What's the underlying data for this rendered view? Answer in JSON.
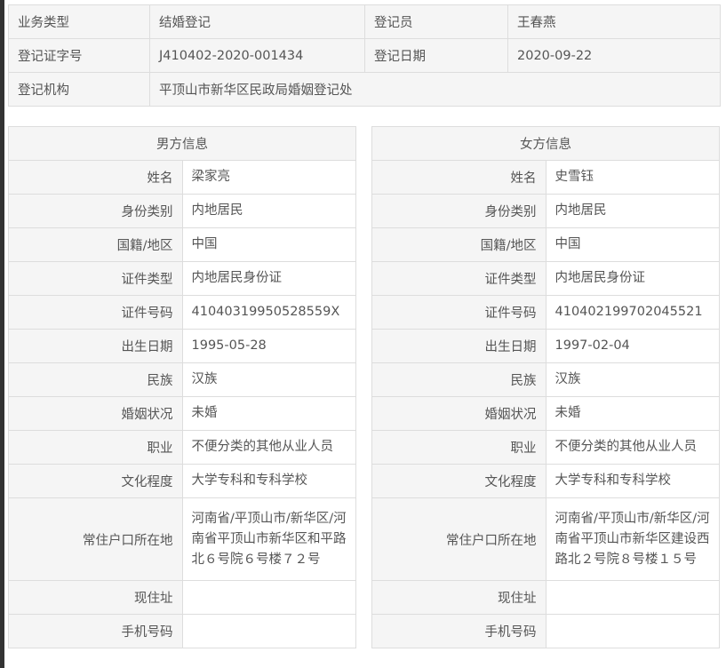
{
  "registration": {
    "business_type_label": "业务类型",
    "business_type": "结婚登记",
    "registrar_label": "登记员",
    "registrar": "王春燕",
    "cert_no_label": "登记证字号",
    "cert_no": "J410402-2020-001434",
    "date_label": "登记日期",
    "date": "2020-09-22",
    "office_label": "登记机构",
    "office": "平顶山市新华区民政局婚姻登记处"
  },
  "labels": [
    "姓名",
    "身份类别",
    "国籍/地区",
    "证件类型",
    "证件号码",
    "出生日期",
    "民族",
    "婚姻状况",
    "职业",
    "文化程度",
    "常住户口所在地",
    "现住址",
    "手机号码"
  ],
  "male": {
    "title": "男方信息",
    "values": [
      "梁家亮",
      "内地居民",
      "中国",
      "内地居民身份证",
      "41040319950528559X",
      "1995-05-28",
      "汉族",
      "未婚",
      "不便分类的其他从业人员",
      "大学专科和专科学校",
      "河南省/平顶山市/新华区/河南省平顶山市新华区和平路北６号院６号楼７２号",
      "",
      ""
    ]
  },
  "female": {
    "title": "女方信息",
    "values": [
      "史雪钰",
      "内地居民",
      "中国",
      "内地居民身份证",
      "410402199702045521",
      "1997-02-04",
      "汉族",
      "未婚",
      "不便分类的其他从业人员",
      "大学专科和专科学校",
      "河南省/平顶山市/新华区/河南省平顶山市新华区建设西路北２号院８号楼１５号",
      "",
      ""
    ]
  }
}
